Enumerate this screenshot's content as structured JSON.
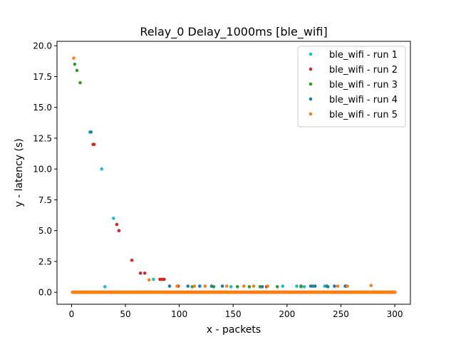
{
  "chart_data": {
    "type": "scatter",
    "title": "Relay_0 Delay_1000ms [ble_wifi]",
    "xlabel": "x - packets",
    "ylabel": "y - latency (s)",
    "xlim": [
      -13.5,
      314.5
    ],
    "ylim": [
      -0.97,
      20.36
    ],
    "xticks": [
      0,
      50,
      100,
      150,
      200,
      250,
      300
    ],
    "yticks": [
      0.0,
      2.5,
      5.0,
      7.5,
      10.0,
      12.5,
      15.0,
      17.5,
      20.0
    ],
    "xtick_labels": [
      "0",
      "50",
      "100",
      "150",
      "200",
      "250",
      "300"
    ],
    "ytick_labels": [
      "0.0",
      "2.5",
      "5.0",
      "7.5",
      "10.0",
      "12.5",
      "15.0",
      "17.5",
      "20.0"
    ],
    "grid": false,
    "legend_position": "top-right",
    "baseline": {
      "x_start": 1,
      "x_end": 300,
      "y": 0.0
    },
    "series": [
      {
        "name": "ble_wifi - run 1",
        "color": "#17becf",
        "points": [
          [
            17,
            13.0
          ],
          [
            28,
            10.0
          ],
          [
            31,
            0.45
          ],
          [
            39,
            6.0
          ],
          [
            76,
            1.05
          ],
          [
            148,
            0.45
          ],
          [
            196,
            0.5
          ],
          [
            209,
            0.5
          ],
          [
            216,
            0.45
          ],
          [
            235,
            0.5
          ]
        ]
      },
      {
        "name": "ble_wifi - run 2",
        "color": "#d62728",
        "points": [
          [
            20,
            12.0
          ],
          [
            21,
            12.0
          ],
          [
            42,
            5.5
          ],
          [
            44,
            5.0
          ],
          [
            56,
            2.6
          ],
          [
            64,
            1.55
          ],
          [
            68,
            1.55
          ],
          [
            82,
            1.05
          ],
          [
            84,
            1.05
          ],
          [
            86,
            1.05
          ],
          [
            99,
            0.5
          ],
          [
            181,
            0.45
          ],
          [
            213,
            0.5
          ]
        ]
      },
      {
        "name": "ble_wifi - run 3",
        "color": "#2ca02c",
        "points": [
          [
            3,
            18.5
          ],
          [
            5,
            18.0
          ],
          [
            8,
            17.0
          ],
          [
            112,
            0.45
          ],
          [
            132,
            0.45
          ],
          [
            154,
            0.45
          ],
          [
            165,
            0.45
          ],
          [
            175,
            0.45
          ],
          [
            191,
            0.45
          ],
          [
            213,
            0.45
          ],
          [
            224,
            0.5
          ],
          [
            238,
            0.45
          ],
          [
            255,
            0.5
          ]
        ]
      },
      {
        "name": "ble_wifi - run 4",
        "color": "#1f77b4",
        "points": [
          [
            18,
            13.0
          ],
          [
            91,
            0.5
          ],
          [
            108,
            0.5
          ],
          [
            119,
            0.5
          ],
          [
            130,
            0.5
          ],
          [
            140,
            0.5
          ],
          [
            177,
            0.45
          ],
          [
            222,
            0.5
          ],
          [
            226,
            0.5
          ],
          [
            237,
            0.5
          ],
          [
            244,
            0.5
          ],
          [
            254,
            0.5
          ]
        ]
      },
      {
        "name": "ble_wifi - run 5",
        "color": "#ff7f0e",
        "points": [
          [
            2,
            19.0
          ],
          [
            72,
            1.0
          ],
          [
            98,
            0.5
          ],
          [
            114,
            0.5
          ],
          [
            124,
            0.5
          ],
          [
            144,
            0.5
          ],
          [
            160,
            0.5
          ],
          [
            169,
            0.5
          ],
          [
            182,
            0.5
          ],
          [
            247,
            0.5
          ],
          [
            256,
            0.5
          ],
          [
            278,
            0.55
          ]
        ]
      }
    ]
  }
}
